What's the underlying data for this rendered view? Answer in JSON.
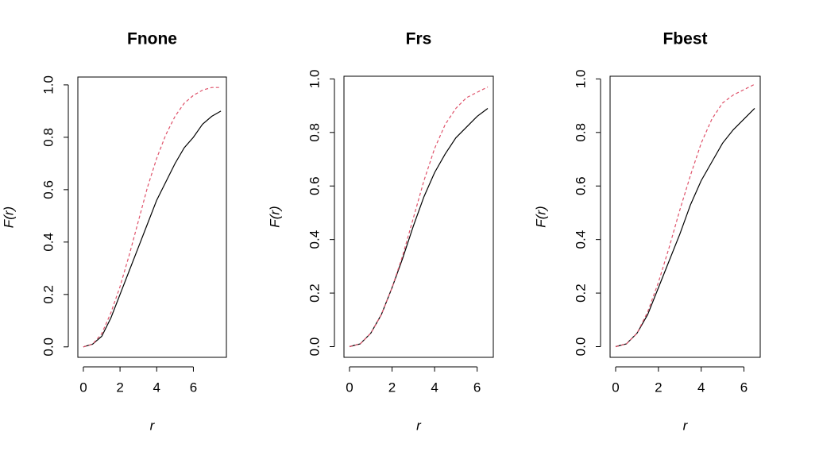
{
  "chart_data": [
    {
      "type": "line",
      "title": "Fnone",
      "xlabel": "r",
      "ylabel": "F(r)",
      "x": [
        0,
        0.5,
        1,
        1.5,
        2,
        2.5,
        3,
        3.5,
        4,
        4.5,
        5,
        5.5,
        6,
        6.5,
        7,
        7.5
      ],
      "series": [
        {
          "color": "#000000",
          "linestyle": "solid",
          "values": [
            0,
            0.01,
            0.04,
            0.11,
            0.2,
            0.29,
            0.38,
            0.47,
            0.56,
            0.63,
            0.7,
            0.76,
            0.8,
            0.85,
            0.88,
            0.9
          ]
        },
        {
          "color": "#df536b",
          "linestyle": "dashed",
          "values": [
            0,
            0.01,
            0.05,
            0.13,
            0.23,
            0.35,
            0.48,
            0.61,
            0.72,
            0.81,
            0.88,
            0.93,
            0.96,
            0.98,
            0.99,
            0.99
          ]
        }
      ],
      "xlim": [
        -0.3,
        7.8
      ],
      "xticks": [
        0,
        2,
        4,
        6
      ],
      "ylim": [
        -0.04,
        1.03
      ],
      "yticks": [
        {
          "value": 0,
          "label": "0.0"
        },
        0.2,
        0.4,
        0.6,
        0.8,
        {
          "value": 1,
          "label": "1.0"
        }
      ]
    },
    {
      "type": "line",
      "title": "Frs",
      "xlabel": "r",
      "ylabel": "F(r)",
      "x": [
        0,
        0.5,
        1,
        1.5,
        2,
        2.5,
        3,
        3.5,
        4,
        4.5,
        5,
        5.5,
        6,
        6.5
      ],
      "series": [
        {
          "color": "#000000",
          "linestyle": "solid",
          "values": [
            0,
            0.01,
            0.05,
            0.12,
            0.22,
            0.33,
            0.45,
            0.56,
            0.65,
            0.72,
            0.78,
            0.82,
            0.86,
            0.89
          ]
        },
        {
          "color": "#df536b",
          "linestyle": "dashed",
          "values": [
            0,
            0.01,
            0.05,
            0.12,
            0.22,
            0.34,
            0.48,
            0.62,
            0.74,
            0.83,
            0.89,
            0.93,
            0.95,
            0.97
          ]
        }
      ],
      "xlim": [
        -0.26,
        6.76
      ],
      "xticks": [
        0,
        2,
        4,
        6
      ],
      "ylim": [
        -0.04,
        1.01
      ],
      "yticks": [
        {
          "value": 0,
          "label": "0.0"
        },
        0.2,
        0.4,
        0.6,
        0.8,
        {
          "value": 1,
          "label": "1.0"
        }
      ]
    },
    {
      "type": "line",
      "title": "Fbest",
      "xlabel": "r",
      "ylabel": "F(r)",
      "x": [
        0,
        0.5,
        1,
        1.5,
        2,
        2.5,
        3,
        3.5,
        4,
        4.5,
        5,
        5.5,
        6,
        6.5
      ],
      "series": [
        {
          "color": "#000000",
          "linestyle": "solid",
          "values": [
            0,
            0.01,
            0.05,
            0.12,
            0.22,
            0.32,
            0.42,
            0.53,
            0.62,
            0.69,
            0.76,
            0.81,
            0.85,
            0.89
          ]
        },
        {
          "color": "#df536b",
          "linestyle": "dashed",
          "values": [
            0,
            0.01,
            0.05,
            0.13,
            0.24,
            0.37,
            0.51,
            0.64,
            0.76,
            0.85,
            0.91,
            0.94,
            0.96,
            0.98
          ]
        }
      ],
      "xlim": [
        -0.26,
        6.76
      ],
      "xticks": [
        0,
        2,
        4,
        6
      ],
      "ylim": [
        -0.04,
        1.01
      ],
      "yticks": [
        {
          "value": 0,
          "label": "0.0"
        },
        0.2,
        0.4,
        0.6,
        0.8,
        {
          "value": 1,
          "label": "1.0"
        }
      ]
    }
  ]
}
